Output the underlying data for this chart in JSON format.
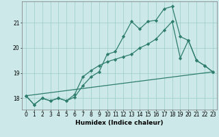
{
  "xlabel": "Humidex (Indice chaleur)",
  "background_color": "#cce8e8",
  "line_color": "#2e7d6e",
  "x_ticks": [
    0,
    1,
    2,
    3,
    4,
    5,
    6,
    7,
    8,
    9,
    10,
    11,
    12,
    13,
    14,
    15,
    16,
    17,
    18,
    19,
    20,
    21,
    22,
    23
  ],
  "y_ticks": [
    18,
    19,
    20,
    21
  ],
  "ylim": [
    17.55,
    21.85
  ],
  "xlim": [
    -0.5,
    23.5
  ],
  "series1_x": [
    0,
    1,
    2,
    3,
    4,
    5,
    6,
    7,
    8,
    9,
    10,
    11,
    12,
    13,
    14,
    15,
    16,
    17,
    18,
    19,
    20,
    21,
    22,
    23
  ],
  "series1_y": [
    18.1,
    17.75,
    18.0,
    17.9,
    18.0,
    17.9,
    18.05,
    18.5,
    18.85,
    19.05,
    19.75,
    19.85,
    20.45,
    21.05,
    20.75,
    21.05,
    21.1,
    21.55,
    21.65,
    20.45,
    20.3,
    19.5,
    19.3,
    19.05
  ],
  "series2_x": [
    0,
    1,
    2,
    3,
    4,
    5,
    6,
    7,
    8,
    9,
    10,
    11,
    12,
    13,
    14,
    15,
    16,
    17,
    18,
    19,
    20,
    21,
    22,
    23
  ],
  "series2_y": [
    18.1,
    17.75,
    18.0,
    17.9,
    18.0,
    17.9,
    18.15,
    18.85,
    19.1,
    19.3,
    19.45,
    19.55,
    19.65,
    19.75,
    20.0,
    20.15,
    20.35,
    20.7,
    21.05,
    19.6,
    20.3,
    19.5,
    19.3,
    19.05
  ],
  "series3_x": [
    0,
    23
  ],
  "series3_y": [
    18.1,
    19.05
  ],
  "grid_color": "#99cccc",
  "marker": "D",
  "marker_size": 2.2,
  "linewidth": 0.9,
  "axis_fontsize": 6.5,
  "tick_fontsize": 5.5
}
